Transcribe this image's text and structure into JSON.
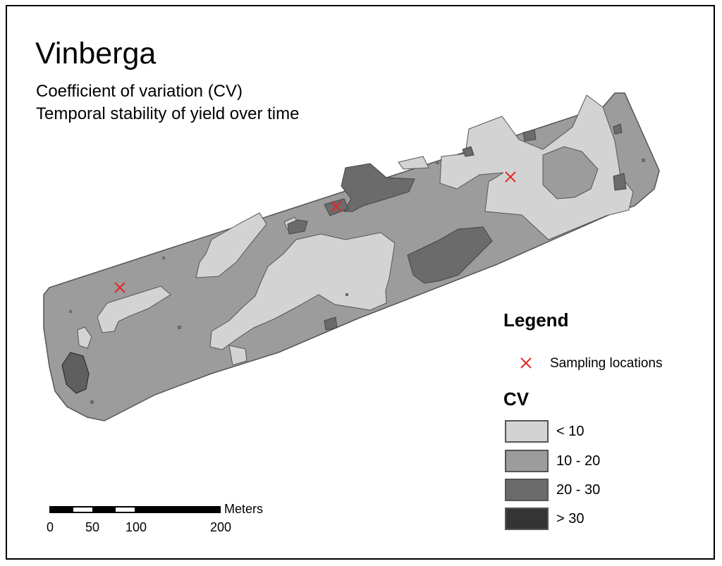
{
  "title": "Vinberga",
  "subtitle_lines": [
    "Coefficient of variation (CV)",
    "Temporal stability of yield over time"
  ],
  "legend": {
    "title": "Legend",
    "sampling_label": "Sampling locations",
    "sampling_marker_color": "#e3262b",
    "cv_title": "CV",
    "classes": [
      {
        "label": "< 10",
        "color": "#d3d3d3"
      },
      {
        "label": "10 - 20",
        "color": "#9c9c9c"
      },
      {
        "label": "20 - 30",
        "color": "#6b6b6b"
      },
      {
        "label": "> 30",
        "color": "#343434"
      }
    ]
  },
  "scale_bar": {
    "unit": "Meters",
    "ticks": [
      "0",
      "50",
      "100",
      "200"
    ]
  }
}
